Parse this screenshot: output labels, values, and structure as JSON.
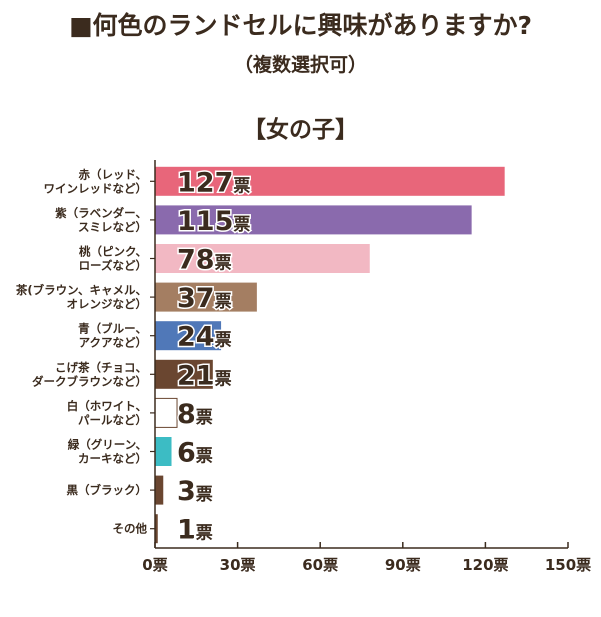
{
  "chart_data": {
    "type": "bar",
    "orientation": "horizontal",
    "title": "■何色のランドセルに興味がありますか?",
    "subtitle": "（複数選択可）",
    "group_label": "【女の子】",
    "unit": "票",
    "categories": [
      [
        "赤（レッド、",
        "ワインレッドなど）"
      ],
      [
        "紫（ラベンダー、",
        "スミレなど）"
      ],
      [
        "桃（ピンク、",
        "ローズなど）"
      ],
      [
        "茶(ブラウン、キャメル、",
        "オレンジなど）"
      ],
      [
        "青（ブルー、",
        "アクアなど）"
      ],
      [
        "こげ茶（チョコ、",
        "ダークブラウンなど）"
      ],
      [
        "白（ホワイト、",
        "パールなど）"
      ],
      [
        "緑（グリーン、",
        "カーキなど）"
      ],
      [
        "黒（ブラック）"
      ],
      [
        "その他"
      ]
    ],
    "values": [
      127,
      115,
      78,
      37,
      24,
      21,
      8,
      6,
      3,
      1
    ],
    "bar_colors": [
      "#e8667a",
      "#8a6aad",
      "#f2b8c3",
      "#a47e62",
      "#5078b8",
      "#6a4630",
      "#ffffff",
      "#3cbcc4",
      "#6a4630",
      "#6a4630"
    ],
    "value_labels": [
      "127票",
      "115票",
      "78票",
      "37票",
      "24票",
      "21票",
      "8票",
      "6票",
      "3票",
      "1票"
    ],
    "xlim": [
      0,
      150
    ],
    "xticks": [
      0,
      30,
      60,
      90,
      120,
      150
    ],
    "xtick_labels": [
      "0票",
      "30票",
      "60票",
      "90票",
      "120票",
      "150票"
    ],
    "grid": false
  }
}
